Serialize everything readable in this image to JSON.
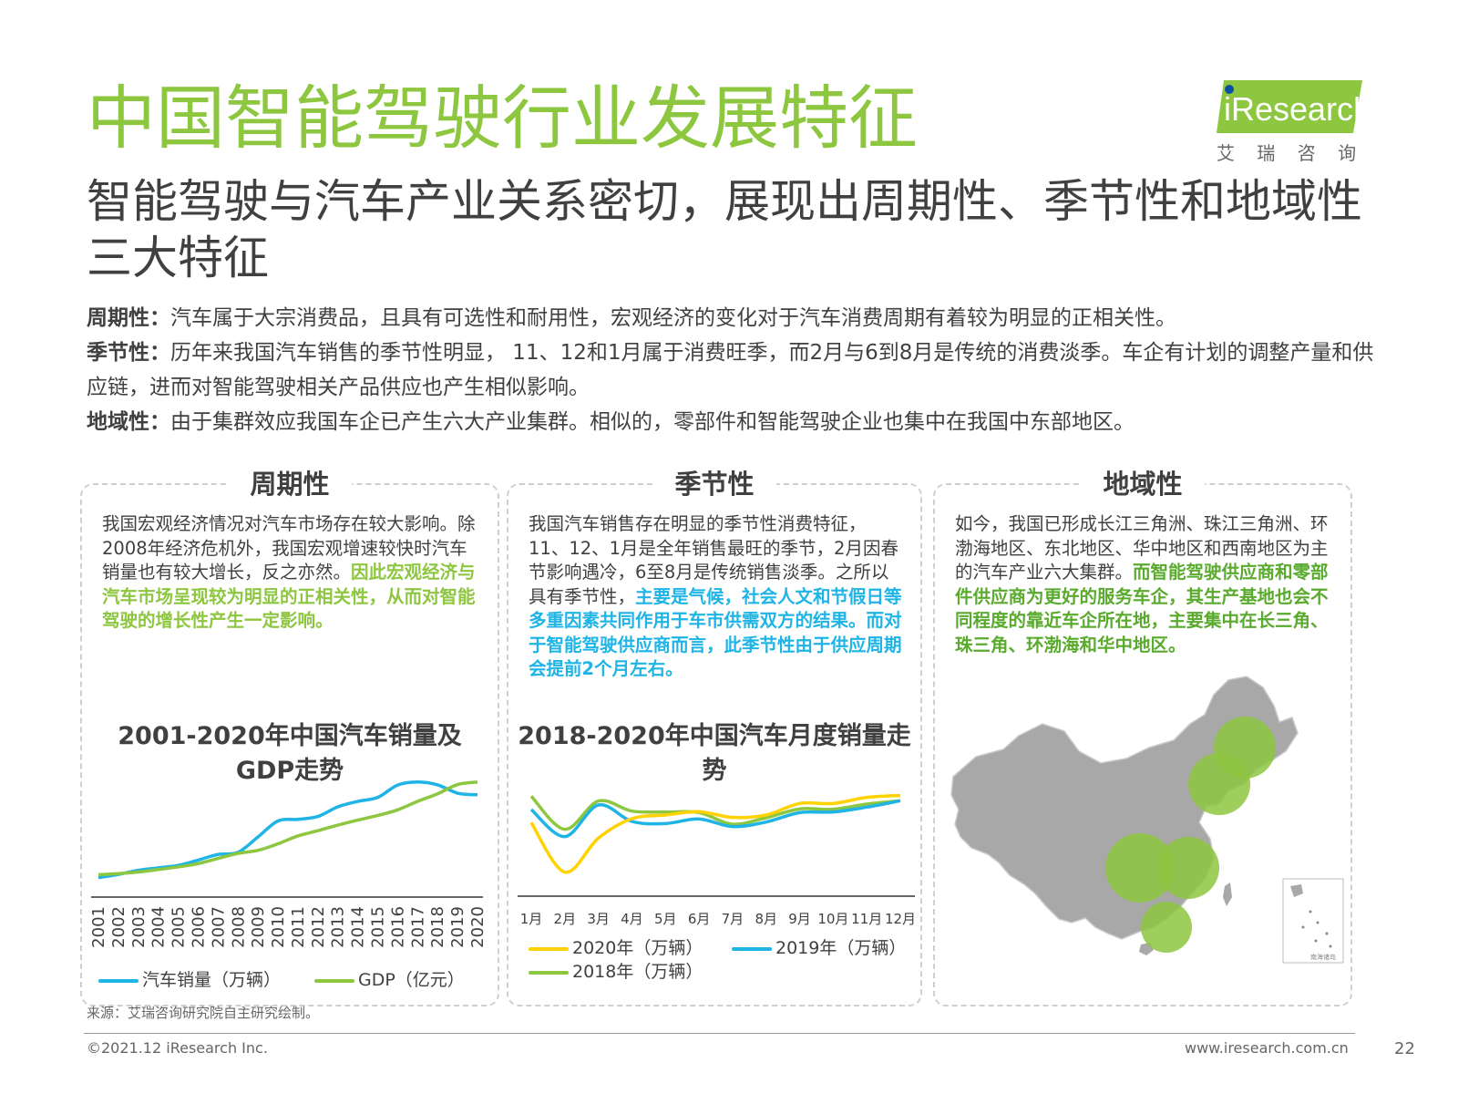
{
  "title": "中国智能驾驶行业发展特征",
  "subtitle": "智能驾驶与汽车产业关系密切，展现出周期性、季节性和地域性三大特征",
  "logo": {
    "brand": "iResearch",
    "cn": "艾 瑞 咨 询",
    "color": "#8dc63f"
  },
  "intro": [
    {
      "label": "周期性：",
      "text": "汽车属于大宗消费品，且具有可选性和耐用性，宏观经济的变化对于汽车消费周期有着较为明显的正相关性。"
    },
    {
      "label": "季节性：",
      "text": "历年来我国汽车销售的季节性明显， 11、12和1月属于消费旺季，而2月与6到8月是传统的消费淡季。车企有计划的调整产量和供应链，进而对智能驾驶相关产品供应也产生相似影响。"
    },
    {
      "label": "地域性：",
      "text": "由于集群效应我国车企已产生六大产业集群。相似的，零部件和智能驾驶企业也集中在我国中东部地区。"
    }
  ],
  "panels": {
    "cycle": {
      "title": "周期性",
      "text_plain": "我国宏观经济情况对汽车市场存在较大影响。除2008年经济危机外，我国宏观增速较快时汽车销量也有较大增长，反之亦然。",
      "text_highlight": "因此宏观经济与汽车市场呈现较为明显的正相关性，从而对智能驾驶的增长性产生一定影响。"
    },
    "season": {
      "title": "季节性",
      "text_plain": "我国汽车销售存在明显的季节性消费特征，11、12、1月是全年销售最旺的季节，2月因春节影响遇冷，6至8月是传统销售淡季。之所以具有季节性，",
      "text_highlight": "主要是气候，社会人文和节假日等多重因素共同作用于车市供需双方的结果。而对于智能驾驶供应商而言，此季节性由于供应周期会提前2个月左右。"
    },
    "region": {
      "title": "地域性",
      "text_plain": "如今，我国已形成长江三角洲、珠江三角洲、环渤海地区、东北地区、华中地区和西南地区为主的汽车产业六大集群。",
      "text_highlight": "而智能驾驶供应商和零部件供应商为更好的服务车企，其生产基地也会不同程度的靠近车企所在地，主要集中在长三角、珠三角、环渤海和华中地区。",
      "map_inset_label": "南海诸岛"
    }
  },
  "chart_data": [
    {
      "type": "line",
      "title": "2001-2020年中国汽车销量及GDP走势",
      "x": [
        "2001",
        "2002",
        "2003",
        "2004",
        "2005",
        "2006",
        "2007",
        "2008",
        "2009",
        "2010",
        "2011",
        "2012",
        "2013",
        "2014",
        "2015",
        "2016",
        "2017",
        "2018",
        "2019",
        "2020"
      ],
      "series": [
        {
          "name": "汽车销量（万辆）",
          "color": "#1fb4e6",
          "values": [
            236,
            325,
            439,
            507,
            576,
            722,
            879,
            938,
            1364,
            1806,
            1851,
            1931,
            2198,
            2349,
            2460,
            2803,
            2888,
            2808,
            2577,
            2531
          ]
        },
        {
          "name": "GDP（亿元）",
          "color": "#8dc63f",
          "values": [
            110863,
            121717,
            137422,
            161840,
            187319,
            219439,
            270232,
            319516,
            349081,
            413030,
            489301,
            540367,
            595244,
            643974,
            689052,
            744127,
            827122,
            900309,
            990865,
            1015986
          ]
        }
      ]
    },
    {
      "type": "line",
      "title": "2018-2020年中国汽车月度销量走势",
      "x": [
        "1月",
        "2月",
        "3月",
        "4月",
        "5月",
        "6月",
        "7月",
        "8月",
        "9月",
        "10月",
        "11月",
        "12月"
      ],
      "series": [
        {
          "name": "2020年（万辆）",
          "color": "#ffd200",
          "values": [
            194,
            31,
            143,
            207,
            219,
            230,
            211,
            219,
            257,
            257,
            277,
            283
          ]
        },
        {
          "name": "2019年（万辆）",
          "color": "#1fb4e6",
          "values": [
            237,
            148,
            252,
            198,
            191,
            206,
            181,
            196,
            227,
            229,
            245,
            266
          ]
        },
        {
          "name": "2018年（万辆）",
          "color": "#8dc63f",
          "values": [
            281,
            172,
            265,
            232,
            229,
            227,
            189,
            210,
            239,
            238,
            255,
            266
          ]
        }
      ]
    }
  ],
  "source": "来源：艾瑞咨询研究院自主研究绘制。",
  "copyright": "©2021.12 iResearch Inc.",
  "website": "www.iresearch.com.cn",
  "page_number": "22"
}
